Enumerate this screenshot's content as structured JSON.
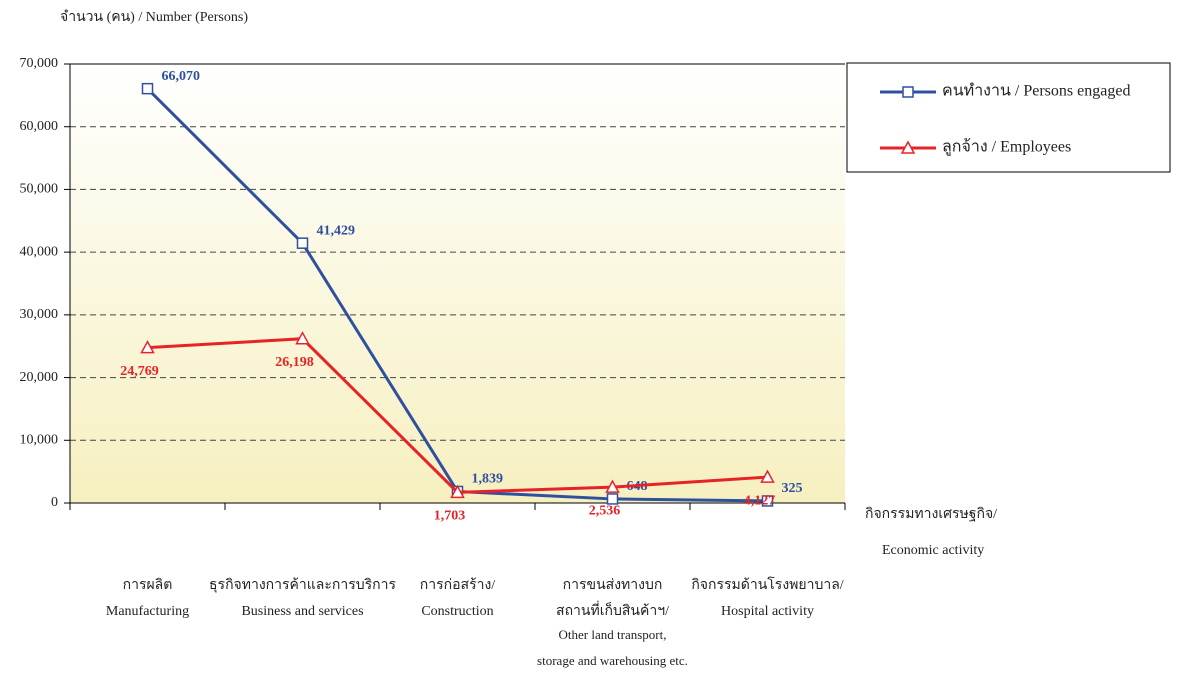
{
  "chart_data": {
    "type": "line",
    "y_label": "จำนวน (คน) / Number (Persons)",
    "x_label": [
      "กิจกรรมทางเศรษฐกิจ/",
      "Economic activity"
    ],
    "categories": [
      [
        "การผลิต",
        "Manufacturing"
      ],
      [
        "ธุรกิจทางการค้าและการบริการ",
        "Business and services"
      ],
      [
        "การก่อสร้าง/",
        "Construction"
      ],
      [
        "การขนส่งทางบก",
        "สถานที่เก็บสินค้าฯ/",
        "Other land transport,",
        "storage and warehousing etc."
      ],
      [
        "กิจกรรมด้านโรงพยาบาล/",
        "Hospital activity"
      ]
    ],
    "series": [
      {
        "name": "คนทำงาน / Persons engaged",
        "color": "#2f4f9f",
        "marker": "square",
        "values": [
          66070,
          41429,
          1839,
          648,
          325
        ],
        "value_labels": [
          "66,070",
          "41,429",
          "1,839",
          "648",
          "325"
        ]
      },
      {
        "name": "ลูกจ้าง / Employees",
        "color": "#e82328",
        "marker": "triangle",
        "values": [
          24769,
          26198,
          1703,
          2536,
          4127
        ],
        "value_labels": [
          "24,769",
          "26,198",
          "1,703",
          "2,536",
          "4,127"
        ]
      }
    ],
    "ylim": [
      0,
      70000
    ],
    "yticks": [
      {
        "value": 0,
        "label": "0"
      },
      {
        "value": 10000,
        "label": "10,000"
      },
      {
        "value": 20000,
        "label": "20,000"
      },
      {
        "value": 30000,
        "label": "30,000"
      },
      {
        "value": 40000,
        "label": "40,000"
      },
      {
        "value": 50000,
        "label": "50,000"
      },
      {
        "value": 60000,
        "label": "60,000"
      },
      {
        "value": 70000,
        "label": "70,000"
      }
    ],
    "grid": true,
    "legend": "right"
  }
}
